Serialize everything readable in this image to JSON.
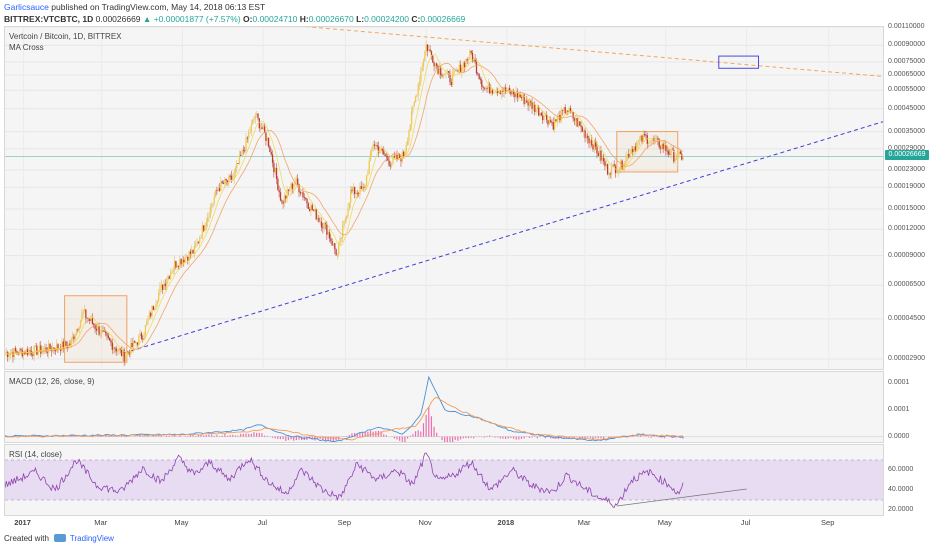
{
  "header": {
    "author": "Garlicsauce",
    "published": "published on TradingView.com, May 14, 2018 06:13 EST",
    "symbol": "BITTREX:VTCBTC, 1D",
    "price": "0.00026669",
    "change": "▲ +0.00001877 (+7.57%)",
    "o_label": "O:",
    "o_value": "0.00024710",
    "h_label": "H:",
    "h_value": "0.00026670",
    "l_label": "L:",
    "l_value": "0.00024200",
    "c_label": "C:",
    "c_value": "0.00026669"
  },
  "main_pane": {
    "title": "Vertcoin / Bitcoin, 1D, BITTREX",
    "indicator": "MA Cross",
    "last_price_tag": "0.00026669"
  },
  "macd_pane": {
    "title": "MACD (12, 26, close, 9)"
  },
  "rsi_pane": {
    "title": "RSI (14, close)"
  },
  "footer": {
    "created_with": "Created with",
    "brand": "TradingView"
  },
  "colors": {
    "up": "#26a69a",
    "down": "#ef5350",
    "bull_candle": "#f2c94c",
    "bear_candle": "#c0392b",
    "ma_fast": "#f2d74b",
    "ma_slow": "#f39c5a",
    "trendline": "#3f3fd6",
    "resistance": "#f5a65b",
    "rsi_line": "#8e44ad",
    "rsi_band": "#e8dcf3",
    "macd_line": "#4a90d9",
    "signal_line": "#f39c5a",
    "histogram": "#e84393",
    "highlight_box": "#f0a060"
  },
  "chart_data": [
    {
      "type": "candlestick",
      "title": "Vertcoin / Bitcoin, 1D, BITTREX",
      "scale": "log",
      "ylim": [
        2.6e-05,
        0.0011
      ],
      "y_ticks": [
        "0.00110000",
        "0.00090000",
        "0.00075000",
        "0.00065000",
        "0.00055000",
        "0.00045000",
        "0.00035000",
        "0.00029000",
        "0.00023000",
        "0.00019000",
        "0.00015000",
        "0.00012000",
        "0.00009000",
        "0.00006500",
        "0.00004500",
        "0.00002900"
      ],
      "x_ticks": [
        {
          "date": "2017-01-01",
          "label": "2017",
          "year": true
        },
        {
          "date": "2017-03-01",
          "label": "Mar"
        },
        {
          "date": "2017-05-01",
          "label": "May"
        },
        {
          "date": "2017-07-01",
          "label": "Jul"
        },
        {
          "date": "2017-09-01",
          "label": "Sep"
        },
        {
          "date": "2017-11-01",
          "label": "Nov"
        },
        {
          "date": "2018-01-01",
          "label": "2018",
          "year": true
        },
        {
          "date": "2018-03-01",
          "label": "Mar"
        },
        {
          "date": "2018-05-01",
          "label": "May"
        },
        {
          "date": "2018-07-01",
          "label": "Jul"
        },
        {
          "date": "2018-09-01",
          "label": "Sep"
        }
      ],
      "xlim": [
        "2016-12-18",
        "2018-10-12"
      ],
      "close_path": [
        [
          "2016-12-18",
          3.1e-05
        ],
        [
          "2017-01-15",
          3.2e-05
        ],
        [
          "2017-02-05",
          3.4e-05
        ],
        [
          "2017-02-15",
          4.8e-05
        ],
        [
          "2017-03-05",
          3.6e-05
        ],
        [
          "2017-03-18",
          3e-05
        ],
        [
          "2017-04-01",
          3.8e-05
        ],
        [
          "2017-04-12",
          5.8e-05
        ],
        [
          "2017-04-25",
          8.2e-05
        ],
        [
          "2017-05-10",
          9.5e-05
        ],
        [
          "2017-05-20",
          0.00014
        ],
        [
          "2017-05-28",
          0.00019
        ],
        [
          "2017-06-08",
          0.00021
        ],
        [
          "2017-06-18",
          0.00031
        ],
        [
          "2017-06-25",
          0.00042
        ],
        [
          "2017-07-05",
          0.00031
        ],
        [
          "2017-07-15",
          0.00016
        ],
        [
          "2017-07-25",
          0.000205
        ],
        [
          "2017-08-05",
          0.000155
        ],
        [
          "2017-08-18",
          0.00012
        ],
        [
          "2017-08-26",
          9e-05
        ],
        [
          "2017-09-05",
          0.00018
        ],
        [
          "2017-09-15",
          0.000185
        ],
        [
          "2017-09-22",
          0.00031
        ],
        [
          "2017-10-05",
          0.00025
        ],
        [
          "2017-10-15",
          0.00027
        ],
        [
          "2017-10-25",
          0.00055
        ],
        [
          "2017-11-01",
          0.0009
        ],
        [
          "2017-11-10",
          0.0007
        ],
        [
          "2017-11-20",
          0.00062
        ],
        [
          "2017-12-05",
          0.00082
        ],
        [
          "2017-12-15",
          0.00056
        ],
        [
          "2017-12-25",
          0.00056
        ],
        [
          "2018-01-10",
          0.00052
        ],
        [
          "2018-01-25",
          0.00044
        ],
        [
          "2018-02-05",
          0.00038
        ],
        [
          "2018-02-15",
          0.00045
        ],
        [
          "2018-02-25",
          0.00037
        ],
        [
          "2018-03-08",
          0.0003
        ],
        [
          "2018-03-18",
          0.00023
        ],
        [
          "2018-03-28",
          0.00024
        ],
        [
          "2018-04-05",
          0.00029
        ],
        [
          "2018-04-15",
          0.00033
        ],
        [
          "2018-04-28",
          0.0003
        ],
        [
          "2018-05-08",
          0.000265
        ],
        [
          "2018-05-14",
          0.000267
        ]
      ],
      "ma_cross": {
        "fast": "yellow",
        "slow": "orange"
      },
      "annotations": [
        {
          "kind": "rising-trendline",
          "style": "dashed",
          "from": [
            "2017-03-18",
            3.1e-05
          ],
          "to": [
            "2018-10-12",
            0.00039
          ]
        },
        {
          "kind": "falling-resistance",
          "style": "dashed",
          "from": [
            "2017-07-01",
            0.00115
          ],
          "to": [
            "2018-10-12",
            0.00064
          ]
        },
        {
          "kind": "box",
          "from": [
            "2017-02-01",
            5.8e-05
          ],
          "to": [
            "2017-03-20",
            2.8e-05
          ]
        },
        {
          "kind": "box",
          "from": [
            "2018-03-25",
            0.00035
          ],
          "to": [
            "2018-05-10",
            0.000225
          ]
        },
        {
          "kind": "box",
          "from": [
            "2018-06-10",
            0.0008
          ],
          "to": [
            "2018-07-10",
            0.0007
          ]
        }
      ],
      "horizontal_line": 0.00026669
    },
    {
      "type": "line",
      "title": "MACD (12, 26, close, 9)",
      "ylim": [
        -1e-05,
        0.00012
      ],
      "y_ticks": [
        "0.0001",
        "0.0001",
        "0.0000"
      ],
      "series": [
        {
          "name": "MACD",
          "points": [
            [
              "2016-12-18",
              1e-06
            ],
            [
              "2017-05-01",
              4e-06
            ],
            [
              "2017-06-15",
              1.2e-05
            ],
            [
              "2017-06-28",
              2.2e-05
            ],
            [
              "2017-07-20",
              2e-06
            ],
            [
              "2017-08-25",
              -1e-05
            ],
            [
              "2017-09-25",
              1.8e-05
            ],
            [
              "2017-10-15",
              5e-06
            ],
            [
              "2017-10-28",
              4e-05
            ],
            [
              "2017-11-03",
              0.00011
            ],
            [
              "2017-11-15",
              5e-05
            ],
            [
              "2017-12-10",
              3.5e-05
            ],
            [
              "2018-01-05",
              1e-05
            ],
            [
              "2018-02-01",
              0.0
            ],
            [
              "2018-03-10",
              -8e-06
            ],
            [
              "2018-04-10",
              4e-06
            ],
            [
              "2018-05-14",
              -1e-06
            ]
          ]
        },
        {
          "name": "Signal",
          "points": [
            [
              "2016-12-18",
              0.0
            ],
            [
              "2017-05-01",
              3e-06
            ],
            [
              "2017-06-15",
              8e-06
            ],
            [
              "2017-07-05",
              1.6e-05
            ],
            [
              "2017-08-05",
              2e-06
            ],
            [
              "2017-09-05",
              -6e-06
            ],
            [
              "2017-10-05",
              1.2e-05
            ],
            [
              "2017-10-25",
              2e-05
            ],
            [
              "2017-11-08",
              7.5e-05
            ],
            [
              "2017-11-25",
              5e-05
            ],
            [
              "2017-12-20",
              2.5e-05
            ],
            [
              "2018-01-20",
              5e-06
            ],
            [
              "2018-03-10",
              -5e-06
            ],
            [
              "2018-04-15",
              3e-06
            ],
            [
              "2018-05-14",
              1e-06
            ]
          ]
        }
      ]
    },
    {
      "type": "line",
      "title": "RSI (14, close)",
      "ylim": [
        15,
        85
      ],
      "y_ticks": [
        "60.0000",
        "40.0000",
        "20.0000"
      ],
      "band": [
        30,
        70
      ],
      "series": [
        {
          "name": "RSI",
          "points": [
            [
              "2016-12-18",
              45
            ],
            [
              "2017-01-10",
              58
            ],
            [
              "2017-01-25",
              40
            ],
            [
              "2017-02-10",
              70
            ],
            [
              "2017-02-25",
              45
            ],
            [
              "2017-03-15",
              38
            ],
            [
              "2017-04-01",
              62
            ],
            [
              "2017-04-15",
              48
            ],
            [
              "2017-04-28",
              72
            ],
            [
              "2017-05-10",
              55
            ],
            [
              "2017-05-22",
              68
            ],
            [
              "2017-06-05",
              50
            ],
            [
              "2017-06-20",
              72
            ],
            [
              "2017-07-05",
              48
            ],
            [
              "2017-07-18",
              36
            ],
            [
              "2017-07-30",
              60
            ],
            [
              "2017-08-15",
              40
            ],
            [
              "2017-08-28",
              32
            ],
            [
              "2017-09-10",
              66
            ],
            [
              "2017-09-25",
              50
            ],
            [
              "2017-10-10",
              60
            ],
            [
              "2017-10-22",
              45
            ],
            [
              "2017-11-01",
              76
            ],
            [
              "2017-11-10",
              48
            ],
            [
              "2017-11-22",
              55
            ],
            [
              "2017-12-05",
              68
            ],
            [
              "2017-12-20",
              40
            ],
            [
              "2018-01-05",
              60
            ],
            [
              "2018-01-20",
              44
            ],
            [
              "2018-02-05",
              38
            ],
            [
              "2018-02-15",
              55
            ],
            [
              "2018-02-28",
              42
            ],
            [
              "2018-03-12",
              32
            ],
            [
              "2018-03-25",
              25
            ],
            [
              "2018-04-05",
              50
            ],
            [
              "2018-04-18",
              58
            ],
            [
              "2018-05-05",
              44
            ],
            [
              "2018-05-10",
              36
            ],
            [
              "2018-05-14",
              45
            ]
          ]
        }
      ],
      "annotations": [
        {
          "kind": "divergence-line",
          "from": [
            "2018-03-25",
            24
          ],
          "to": [
            "2018-07-01",
            41
          ]
        }
      ]
    }
  ]
}
